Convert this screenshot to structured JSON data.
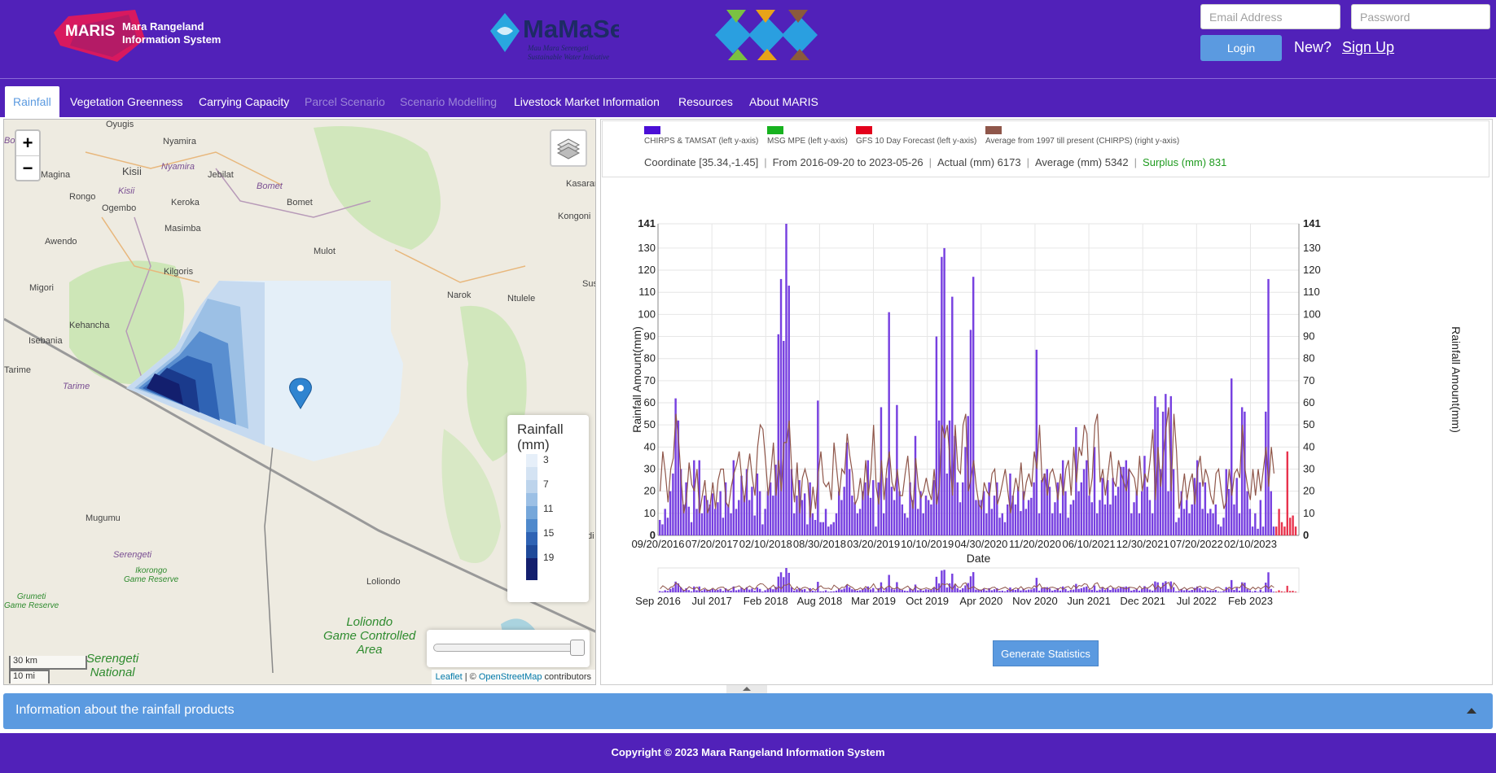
{
  "header": {
    "logo_maris": {
      "badge": "MARIS",
      "line1": "Mara Rangeland",
      "line2": "Information System"
    },
    "logo_mamase": {
      "name": "MaMaSe",
      "tagline1": "Mau Mara Serengeti",
      "tagline2": "Sustainable Water Initiative"
    },
    "email_placeholder": "Email Address",
    "password_placeholder": "Password",
    "login_label": "Login",
    "new_label": "New?",
    "signup_label": "Sign Up"
  },
  "nav": {
    "items": [
      {
        "label": "Rainfall",
        "state": "active"
      },
      {
        "label": "Vegetation Greenness",
        "state": "normal"
      },
      {
        "label": "Carrying Capacity",
        "state": "normal"
      },
      {
        "label": "Parcel Scenario",
        "state": "disabled"
      },
      {
        "label": "Scenario Modelling",
        "state": "disabled"
      },
      {
        "label": "Livestock Market Information",
        "state": "normal"
      },
      {
        "label": "Resources",
        "state": "normal"
      },
      {
        "label": "About MARIS",
        "state": "normal"
      }
    ]
  },
  "map": {
    "zoom_in": "+",
    "zoom_out": "−",
    "legend": {
      "title_line1": "Rainfall",
      "title_line2": "(mm)",
      "ticks": [
        "3",
        "7",
        "11",
        "15",
        "19"
      ]
    },
    "scale": {
      "km": "30 km",
      "mi": "10 mi"
    },
    "attribution": {
      "leaflet": "Leaflet",
      "sep": " | © ",
      "osm": "OpenStreetMap",
      "suffix": " contributors"
    },
    "places": {
      "oyugis": "Oyugis",
      "nyamira": "Nyamira",
      "kisii_town": "Kisii",
      "kisii_region": "Kisii",
      "nyamira_region": "Nyamira",
      "magina": "Magina",
      "jebilat": "Jebilat",
      "bomet_region": "Bomet",
      "bomet": "Bomet",
      "rongo": "Rongo",
      "keroka": "Keroka",
      "ogembo": "Ogembo",
      "masimba": "Masimba",
      "kasarani": "Kasarar",
      "kongoni": "Kongoni",
      "awendo": "Awendo",
      "mulot": "Mulot",
      "kilgoris": "Kilgoris",
      "migori": "Migori",
      "narok": "Narok",
      "ntulele": "Ntulele",
      "sus": "Sus",
      "kehancha": "Kehancha",
      "isebania": "Isebania",
      "tarime": "Tarime",
      "tarime_region": "Tarime",
      "mugumu": "Mugumu",
      "serengeti": "Serengeti",
      "ikorongo_1": "Ikorongo",
      "ikorongo_2": "Game Reserve",
      "grumeti_1": "Grumeti",
      "grumeti_2": "Game Reserve",
      "loliondo": "Loliondo",
      "loliondo_gca_1": "Loliondo",
      "loliondo_gca_2": "Game Controlled",
      "loliondo_gca_3": "Area",
      "serengeti_np_1": "Serengeti",
      "serengeti_np_2": "National",
      "bo": "Bo",
      "di": "di"
    }
  },
  "chart_panel": {
    "legend_items": [
      {
        "label": "CHIRPS & TAMSAT (left y-axis)",
        "color": "#4b0fd6"
      },
      {
        "label": "MSG MPE (left y-axis)",
        "color": "#17b21f"
      },
      {
        "label": "GFS 10 Day Forecast (left y-axis)",
        "color": "#e3001b"
      },
      {
        "label": "Average from 1997 till present (CHIRPS) (right y-axis)",
        "color": "#8f564a"
      }
    ],
    "stats": {
      "coordinate": "Coordinate [35.34,-1.45]",
      "range": "From 2016-09-20 to 2023-05-26",
      "actual": "Actual (mm) 6173",
      "average": "Average (mm) 5342",
      "surplus": "Surplus (mm) 831"
    },
    "generate_label": "Generate Statistics"
  },
  "chart_data": {
    "type": "bar",
    "xlabel": "Date",
    "ylabel": "Rainfall Amount(mm)",
    "ylabel_right": "Rainfall Amount(mm)",
    "ylim": [
      0,
      141
    ],
    "y_ticks": [
      "0",
      "10",
      "20",
      "30",
      "40",
      "50",
      "60",
      "70",
      "80",
      "90",
      "100",
      "110",
      "120",
      "130",
      "141"
    ],
    "x_tick_labels": [
      "09/20/2016",
      "07/20/2017",
      "02/10/2018",
      "08/30/2018",
      "03/20/2019",
      "10/10/2019",
      "04/30/2020",
      "11/20/2020",
      "06/10/2021",
      "12/30/2021",
      "07/20/2022",
      "02/10/2023"
    ],
    "navigator_tick_labels": [
      "Sep 2016",
      "Jul 2017",
      "Feb 2018",
      "Aug 2018",
      "Mar 2019",
      "Oct 2019",
      "Apr 2020",
      "Nov 2020",
      "Jun 2021",
      "Dec 2021",
      "Jul 2022",
      "Feb 2023"
    ],
    "series": [
      {
        "name": "CHIRPS & TAMSAT (left y-axis)",
        "color": "#7740e0",
        "values": [
          7,
          5,
          12,
          8,
          20,
          28,
          62,
          52,
          30,
          14,
          24,
          13,
          6,
          34,
          12,
          34,
          10,
          18,
          16,
          14,
          19,
          12,
          15,
          20,
          8,
          24,
          14,
          10,
          34,
          12,
          16,
          27,
          18,
          30,
          16,
          22,
          9,
          28,
          20,
          5,
          12,
          20,
          24,
          18,
          32,
          91,
          116,
          88,
          141,
          113,
          30,
          10,
          18,
          25,
          16,
          19,
          5,
          24,
          10,
          7,
          61,
          6,
          6,
          12,
          4,
          5,
          6,
          10,
          20,
          16,
          22,
          42,
          30,
          18,
          15,
          10,
          12,
          20,
          24,
          34,
          17,
          25,
          4,
          24,
          58,
          10,
          26,
          101,
          22,
          16,
          59,
          20,
          14,
          10,
          8,
          24,
          16,
          45,
          12,
          20,
          10,
          18,
          16,
          14,
          25,
          90,
          52,
          126,
          130,
          28,
          52,
          108,
          45,
          24,
          15,
          24,
          40,
          54,
          93,
          117,
          16,
          16,
          16,
          20,
          10,
          24,
          12,
          18,
          24,
          8,
          10,
          6,
          14,
          28,
          18,
          14,
          22,
          11,
          20,
          12,
          16,
          17,
          24,
          84,
          10,
          25,
          28,
          30,
          22,
          10,
          15,
          24,
          10,
          34,
          20,
          8,
          14,
          16,
          49,
          20,
          24,
          30,
          34,
          18,
          15,
          40,
          10,
          16,
          26,
          14,
          25,
          14,
          26,
          18,
          22,
          31,
          31,
          34,
          30,
          10,
          15,
          20,
          10,
          20,
          36,
          22,
          16,
          10,
          63,
          58,
          30,
          56,
          64,
          20,
          63,
          30,
          6,
          8,
          20,
          12,
          16,
          10,
          14,
          26,
          34,
          24,
          12,
          24,
          10,
          12,
          10,
          14,
          5,
          4,
          8,
          30,
          21,
          71,
          14,
          26,
          10,
          58,
          56,
          20,
          12,
          4,
          10,
          3,
          16,
          4,
          56,
          116,
          20,
          4
        ]
      },
      {
        "name": "GFS 10 Day Forecast (left y-axis)",
        "color": "#e8334d",
        "values": [
          4,
          12,
          6,
          4,
          38,
          8,
          9,
          4
        ]
      },
      {
        "name": "Average from 1997 till present (CHIRPS) (right y-axis)",
        "color": "#8f564a",
        "values": [
          20,
          38,
          28,
          15,
          30,
          35,
          55,
          43,
          25,
          10,
          17,
          33,
          23,
          20,
          30,
          10,
          18,
          25,
          10,
          14,
          24,
          12,
          25,
          30,
          30,
          15,
          13,
          22,
          28,
          32,
          38,
          25,
          15,
          28,
          37,
          26,
          18,
          40,
          50,
          48,
          34,
          18,
          28,
          42,
          18,
          34,
          20,
          42,
          42,
          52,
          28,
          15,
          33,
          10,
          26,
          30,
          25,
          8,
          22,
          12,
          28,
          38,
          24,
          22,
          24,
          16,
          42,
          30,
          18,
          30,
          28,
          46,
          36,
          28,
          14,
          17,
          26,
          16,
          34,
          18,
          28,
          50,
          22,
          14,
          34,
          16,
          30,
          38,
          24,
          20,
          30,
          18,
          18,
          28,
          36,
          20,
          12,
          35,
          22,
          17,
          20,
          26,
          20,
          16,
          30,
          14,
          22,
          50,
          44,
          50,
          34,
          18,
          50,
          30,
          28,
          50,
          55,
          20,
          26,
          34,
          22,
          14,
          12,
          24,
          20,
          18,
          28,
          30,
          14,
          18,
          24,
          30,
          20,
          10,
          18,
          26,
          20,
          33,
          16,
          24,
          28,
          22,
          38,
          30,
          50,
          24,
          28,
          18,
          28,
          30,
          25,
          16,
          28,
          18,
          30,
          34,
          18,
          40,
          24,
          40,
          36,
          50,
          46,
          18,
          26,
          50,
          55,
          24,
          30,
          18,
          28,
          38,
          25,
          22,
          34,
          28,
          24,
          20,
          30,
          28,
          26,
          18,
          36,
          20,
          28,
          24,
          34,
          48,
          16,
          40,
          22,
          36,
          48,
          58,
          20,
          55,
          38,
          12,
          18,
          28,
          16,
          24,
          28,
          14,
          30,
          36,
          22,
          30,
          26,
          18,
          14,
          28,
          30,
          20,
          12,
          16,
          30,
          18,
          28,
          30,
          26,
          50,
          30,
          22,
          16,
          30,
          18,
          30,
          20,
          30,
          40,
          22,
          40,
          28
        ]
      }
    ]
  },
  "info_bar": {
    "label": "Information about the rainfall products"
  },
  "footer": {
    "copyright": "Copyright © 2023 Mara Rangeland Information System"
  }
}
